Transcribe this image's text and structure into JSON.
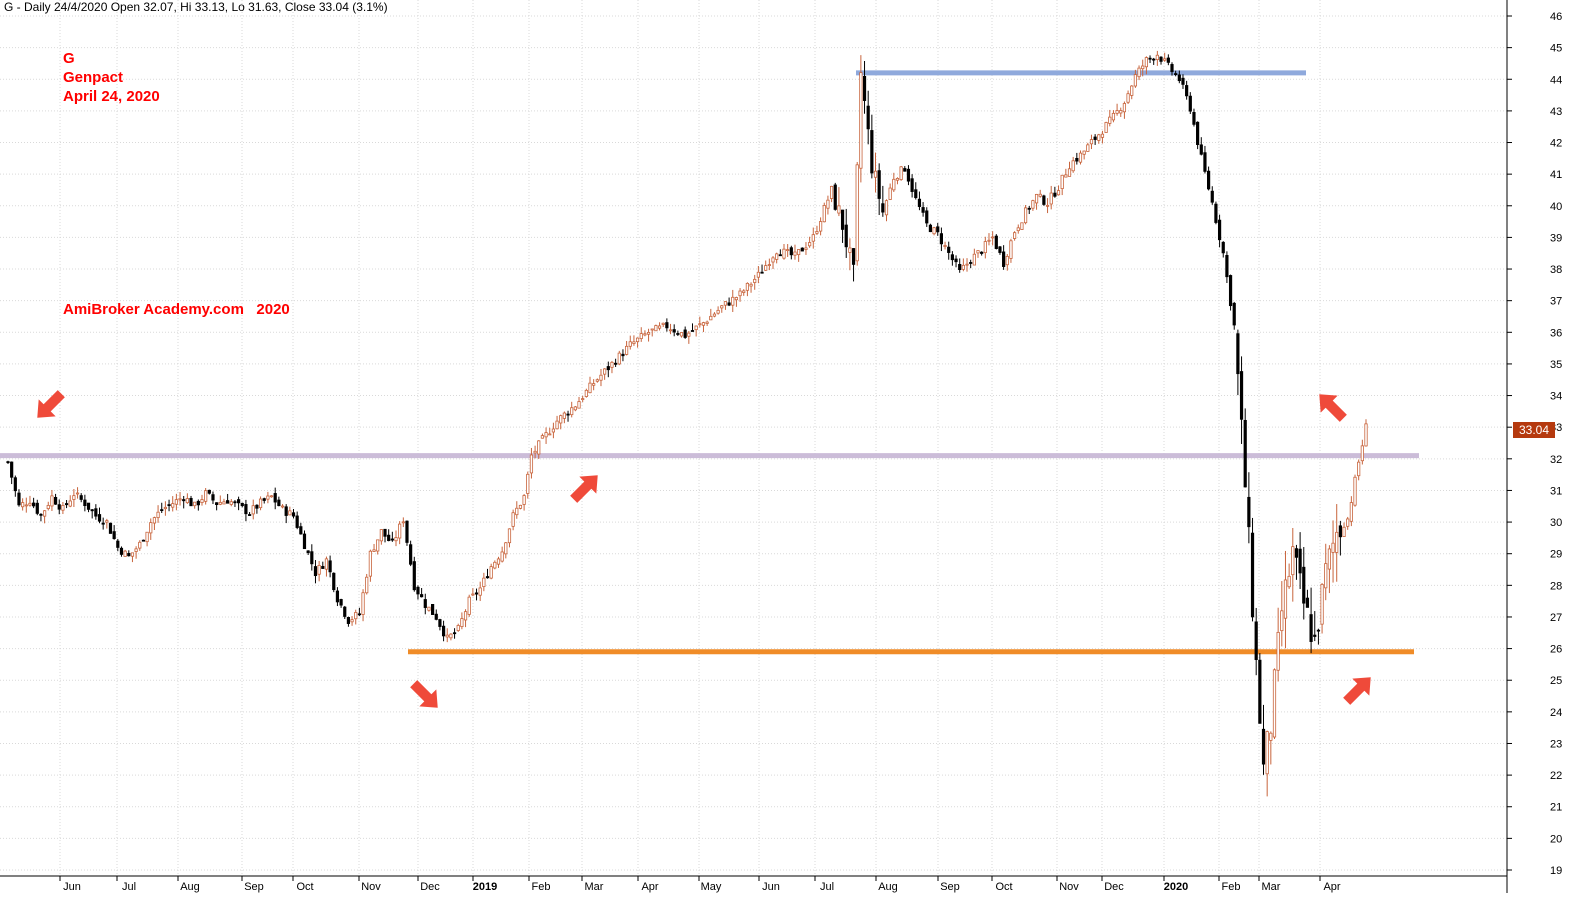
{
  "header": {
    "text": "G - Daily 24/4/2020 Open 32.07, Hi 33.13, Lo 31.63, Close 33.04 (3.1%)"
  },
  "annotations": {
    "symbol": "G",
    "name": "Genpact",
    "date": "April 24, 2020",
    "site": "AmiBroker Academy.com   2020"
  },
  "last_price_label": "33.04",
  "colors": {
    "up_candle": "#c8643c",
    "down_candle": "#000000",
    "resistance_line": "#8fa9dc",
    "mid_line": "#cbbcd8",
    "support_line": "#f08c28",
    "arrow": "#ef4a3a",
    "grid": "#d9d9d9",
    "price_tag": "#b5390e"
  },
  "chart_data": {
    "type": "candlestick",
    "title": "G - Daily 24/4/2020 Open 32.07, Hi 33.13, Lo 31.63, Close 33.04 (3.1%)",
    "ylim": [
      19,
      46
    ],
    "y_ticks": [
      19,
      20,
      21,
      22,
      23,
      24,
      25,
      26,
      27,
      28,
      29,
      30,
      31,
      32,
      33,
      34,
      35,
      36,
      37,
      38,
      39,
      40,
      41,
      42,
      43,
      44,
      45,
      46
    ],
    "x_tick_labels": [
      "Jun",
      "Jul",
      "Aug",
      "Sep",
      "Oct",
      "Nov",
      "Dec",
      "2019",
      "Feb",
      "Mar",
      "Apr",
      "May",
      "Jun",
      "Jul",
      "Aug",
      "Sep",
      "Oct",
      "Nov",
      "Dec",
      "2020",
      "Feb",
      "Mar",
      "Apr"
    ],
    "x_tick_bold": [
      "2019",
      "2020"
    ],
    "grid": true,
    "horizontal_lines": [
      {
        "value": 44.2,
        "from": "Aug",
        "to": "Feb"
      },
      {
        "value": 32.1,
        "from": "start",
        "to": "end"
      },
      {
        "value": 25.9,
        "from": "Dec",
        "to": "end"
      }
    ],
    "series": [
      {
        "values": [
          [
            0,
            31.9
          ],
          [
            3,
            30.5
          ],
          [
            6,
            30.7
          ],
          [
            9,
            30.2
          ],
          [
            12,
            30.8
          ],
          [
            15,
            30.4
          ],
          [
            18,
            30.9
          ],
          [
            21,
            30.6
          ],
          [
            24,
            30.2
          ],
          [
            27,
            30.0
          ],
          [
            30,
            29.2
          ],
          [
            33,
            28.9
          ],
          [
            36,
            29.3
          ],
          [
            39,
            30.0
          ],
          [
            42,
            30.4
          ],
          [
            45,
            30.6
          ],
          [
            48,
            30.8
          ],
          [
            51,
            30.5
          ],
          [
            54,
            30.9
          ],
          [
            57,
            30.6
          ],
          [
            60,
            30.7
          ],
          [
            63,
            30.5
          ],
          [
            66,
            30.3
          ],
          [
            69,
            30.6
          ],
          [
            72,
            30.8
          ],
          [
            75,
            30.4
          ],
          [
            78,
            30.2
          ],
          [
            81,
            29.3
          ],
          [
            84,
            28.4
          ],
          [
            87,
            28.8
          ],
          [
            90,
            27.6
          ],
          [
            93,
            26.9
          ],
          [
            96,
            27.1
          ],
          [
            99,
            29.0
          ],
          [
            102,
            29.7
          ],
          [
            105,
            29.3
          ],
          [
            108,
            30.1
          ],
          [
            111,
            28.0
          ],
          [
            114,
            27.4
          ],
          [
            117,
            27.0
          ],
          [
            120,
            26.3
          ],
          [
            123,
            26.6
          ],
          [
            126,
            27.5
          ],
          [
            129,
            27.9
          ],
          [
            132,
            28.6
          ],
          [
            135,
            29.1
          ],
          [
            138,
            30.2
          ],
          [
            141,
            30.8
          ],
          [
            143,
            32.1
          ],
          [
            146,
            32.6
          ],
          [
            150,
            33.2
          ],
          [
            155,
            33.7
          ],
          [
            160,
            34.4
          ],
          [
            165,
            35.0
          ],
          [
            170,
            35.6
          ],
          [
            175,
            36.0
          ],
          [
            180,
            36.2
          ],
          [
            185,
            35.9
          ],
          [
            190,
            36.3
          ],
          [
            195,
            36.8
          ],
          [
            200,
            37.2
          ],
          [
            205,
            37.8
          ],
          [
            210,
            38.6
          ],
          [
            215,
            38.4
          ],
          [
            220,
            39.0
          ],
          [
            225,
            40.5
          ],
          [
            228,
            39.4
          ],
          [
            231,
            37.8
          ],
          [
            233,
            44.2
          ],
          [
            236,
            41.3
          ],
          [
            239,
            39.8
          ],
          [
            242,
            40.9
          ],
          [
            245,
            41.2
          ],
          [
            248,
            40.2
          ],
          [
            251,
            39.4
          ],
          [
            254,
            39.1
          ],
          [
            257,
            38.5
          ],
          [
            260,
            37.9
          ],
          [
            263,
            38.3
          ],
          [
            266,
            38.6
          ],
          [
            269,
            39.0
          ],
          [
            272,
            38.2
          ],
          [
            275,
            39.2
          ],
          [
            278,
            39.8
          ],
          [
            281,
            40.3
          ],
          [
            284,
            40.1
          ],
          [
            287,
            40.6
          ],
          [
            290,
            41.3
          ],
          [
            293,
            41.6
          ],
          [
            296,
            42.0
          ],
          [
            299,
            42.4
          ],
          [
            302,
            42.8
          ],
          [
            305,
            43.3
          ],
          [
            308,
            44.1
          ],
          [
            311,
            44.6
          ],
          [
            314,
            44.8
          ],
          [
            317,
            44.4
          ],
          [
            320,
            44.0
          ],
          [
            323,
            43.1
          ],
          [
            326,
            41.5
          ],
          [
            329,
            40.1
          ],
          [
            332,
            38.5
          ],
          [
            335,
            36.2
          ],
          [
            338,
            31.2
          ],
          [
            341,
            25.5
          ],
          [
            343,
            22.2
          ],
          [
            345,
            23.6
          ],
          [
            348,
            27.2
          ],
          [
            351,
            29.0
          ],
          [
            354,
            27.4
          ],
          [
            357,
            26.2
          ],
          [
            360,
            28.4
          ],
          [
            363,
            29.7
          ],
          [
            366,
            30.1
          ],
          [
            369,
            31.9
          ],
          [
            371,
            33.0
          ]
        ]
      }
    ],
    "last_value": 33.04
  }
}
